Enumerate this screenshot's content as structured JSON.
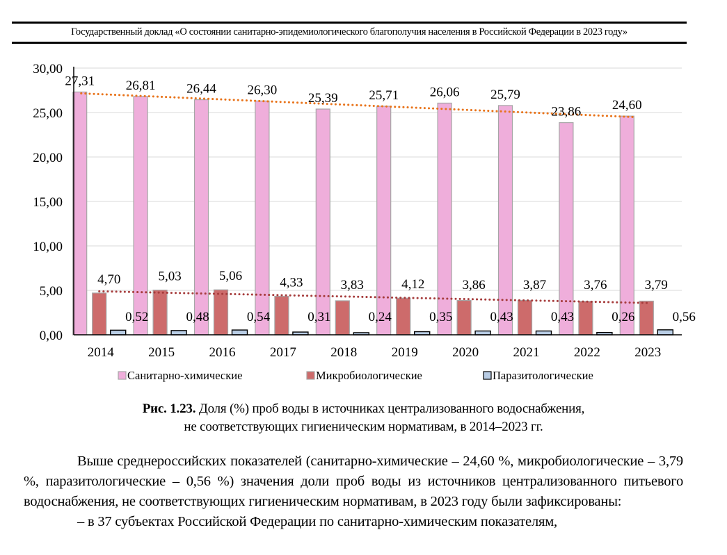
{
  "header": {
    "text": "Государственный доклад «О состоянии санитарно-эпидемиологического благополучия населения в Российской Федерации в 2023 году»"
  },
  "chart_data": {
    "type": "bar",
    "title": "",
    "xlabel": "",
    "ylabel": "",
    "ylim": [
      0,
      30
    ],
    "yticks": [
      "0,00",
      "5,00",
      "10,00",
      "15,00",
      "20,00",
      "25,00",
      "30,00"
    ],
    "ytick_values": [
      0,
      5,
      10,
      15,
      20,
      25,
      30
    ],
    "grid": true,
    "legend_position": "bottom",
    "categories": [
      "2014",
      "2015",
      "2016",
      "2017",
      "2018",
      "2019",
      "2020",
      "2021",
      "2022",
      "2023"
    ],
    "series": [
      {
        "name": "Санитарно-химические",
        "color": "#efaedb",
        "values": [
          27.31,
          26.81,
          26.44,
          26.3,
          25.39,
          25.71,
          26.06,
          25.79,
          23.86,
          24.6
        ],
        "labels": [
          "27,31",
          "26,81",
          "26,44",
          "26,30",
          "25,39",
          "25,71",
          "26,06",
          "25,79",
          "23,86",
          "24,60"
        ],
        "trendline": {
          "type": "linear",
          "style": "dotted",
          "color": "#e8731a"
        }
      },
      {
        "name": "Микробиологические",
        "color": "#cd6b6b",
        "values": [
          4.7,
          5.03,
          5.06,
          4.33,
          3.83,
          4.12,
          3.86,
          3.87,
          3.76,
          3.79
        ],
        "labels": [
          "4,70",
          "5,03",
          "5,06",
          "4,33",
          "3,83",
          "4,12",
          "3,86",
          "3,87",
          "3,76",
          "3,79"
        ],
        "trendline": {
          "type": "linear",
          "style": "dotted",
          "color": "#a63c3c"
        }
      },
      {
        "name": "Паразитологические",
        "color": "#b8cce4",
        "values": [
          0.52,
          0.48,
          0.54,
          0.31,
          0.24,
          0.35,
          0.43,
          0.43,
          0.26,
          0.56
        ],
        "labels": [
          "0,52",
          "0,48",
          "0,54",
          "0,31",
          "0,24",
          "0,35",
          "0,43",
          "0,43",
          "0,26",
          "0,56"
        ]
      }
    ]
  },
  "caption": {
    "label": "Рис. 1.23.",
    "line1": "Доля (%) проб воды в источниках централизованного водоснабжения,",
    "line2": "не соответствующих гигиеническим нормативам, в 2014–2023 гг."
  },
  "body": {
    "paragraph": "Выше среднероссийских показателей (санитарно-химические – 24,60 %, микробиологические – 3,79 %, паразитологические – 0,56 %) значения доли проб воды из источников централизованного питьевого водоснабжения, не соответствующих гигиеническим нормативам, в 2023 году были зафиксированы:",
    "bullet": "– в 37 субъектах Российской Федерации по санитарно-химическим показателям,"
  }
}
